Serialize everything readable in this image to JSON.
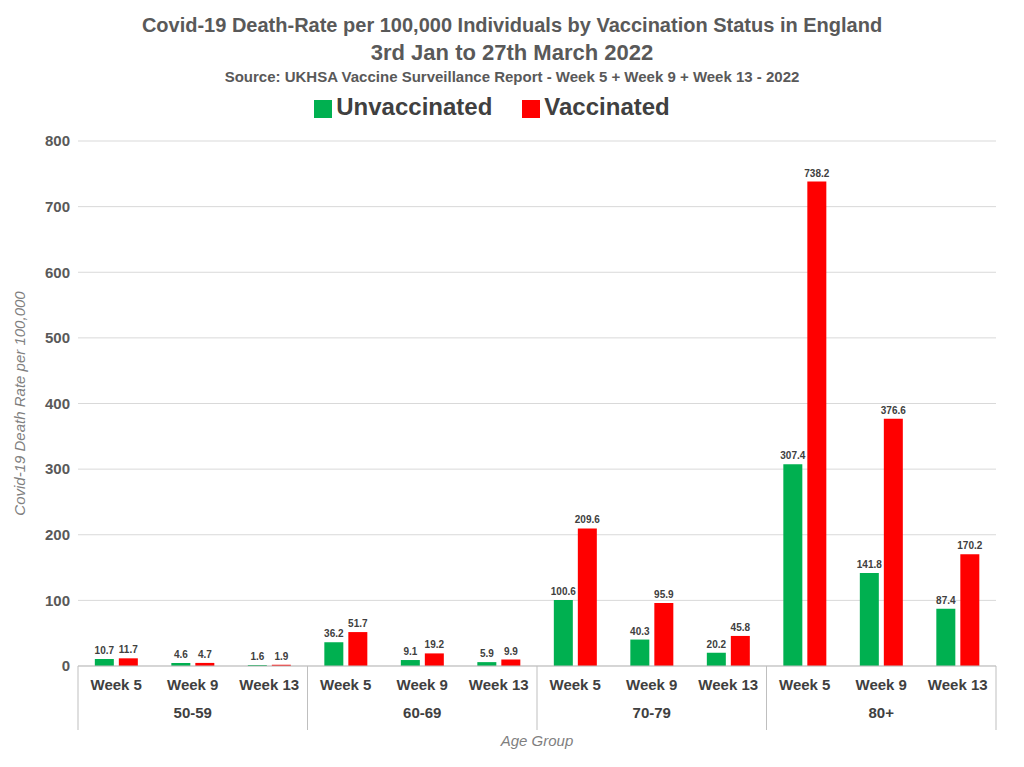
{
  "chart_data": {
    "type": "bar",
    "title": "Covid-19 Death-Rate per 100,000 Individuals by Vaccination Status in England\n3rd Jan to 27th March 2022",
    "subtitle": "Source: UKHSA Vaccine Surveillance Report - Week 5 + Week 9 + Week 13 - 2022",
    "x_label": "Age Group",
    "y_label": "Covid-19 Death Rate per 100,000",
    "categories": [
      "Week 5",
      "Week 9",
      "Week 13",
      "Week 5",
      "Week 9",
      "Week 13",
      "Week 5",
      "Week 9",
      "Week 13",
      "Week 5",
      "Week 9",
      "Week 13"
    ],
    "category_groups": [
      "50-59",
      "60-69",
      "70-79",
      "80+"
    ],
    "series": [
      {
        "name": "Unvaccinated",
        "color": "#00b050",
        "values": [
          10.7,
          4.6,
          1.6,
          36.2,
          9.1,
          5.9,
          100.6,
          40.3,
          20.2,
          307.4,
          141.8,
          87.4
        ]
      },
      {
        "name": "Vaccinated",
        "color": "#ff0000",
        "values": [
          11.7,
          4.7,
          1.9,
          51.7,
          19.2,
          9.9,
          209.6,
          95.9,
          45.8,
          738.2,
          376.6,
          170.2
        ]
      }
    ],
    "ylim": [
      0,
      800
    ],
    "yticks": [
      0,
      100,
      200,
      300,
      400,
      500,
      600,
      700,
      800
    ],
    "grid": true,
    "legend": "top",
    "data_labels": true
  }
}
